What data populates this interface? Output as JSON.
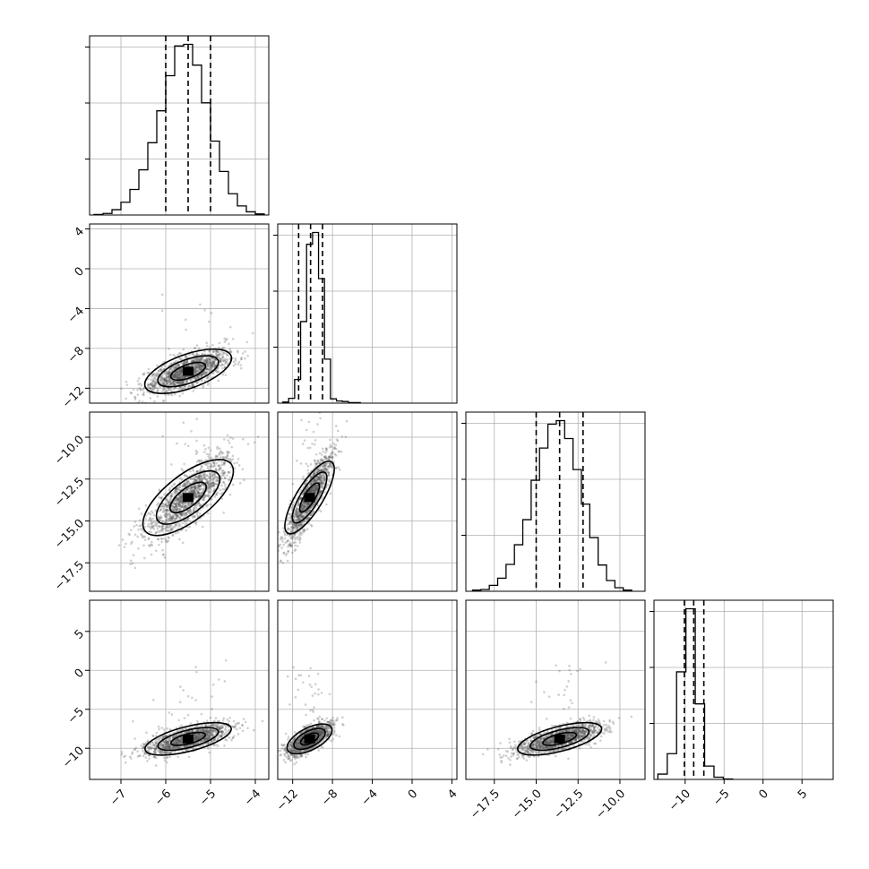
{
  "chart_data": {
    "type": "corner",
    "n_params": 4,
    "colors": {
      "line": "#000000",
      "grid": "#b0b0b0",
      "points": "#555555"
    },
    "params": [
      {
        "range": [
          -7.7,
          -3.7
        ],
        "ticks": [
          {
            "v": -7,
            "label": "−7"
          },
          {
            "v": -6,
            "label": "−6"
          },
          {
            "v": -5,
            "label": "−5"
          },
          {
            "v": -4,
            "label": "−4"
          }
        ],
        "mean": -5.5,
        "sd": 0.48,
        "quantiles": [
          -6.0,
          -5.5,
          -5.0
        ],
        "hist_bins": [
          -7.6,
          -7.4,
          -7.2,
          -7.0,
          -6.8,
          -6.6,
          -6.4,
          -6.2,
          -6.0,
          -5.8,
          -5.6,
          -5.4,
          -5.2,
          -5.0,
          -4.8,
          -4.6,
          -4.4,
          -4.2,
          -4.0,
          -3.8
        ],
        "hist_counts": [
          1,
          3,
          10,
          24,
          48,
          85,
          136,
          196,
          262,
          318,
          321,
          282,
          211,
          139,
          82,
          40,
          17,
          6,
          2
        ]
      },
      {
        "range": [
          -13.5,
          4.5
        ],
        "ticks": [
          {
            "v": -12,
            "label": "−12"
          },
          {
            "v": -8,
            "label": "−8"
          },
          {
            "v": -4,
            "label": "−4"
          },
          {
            "v": 0,
            "label": "0"
          },
          {
            "v": 4,
            "label": "4"
          }
        ],
        "mean": -10.3,
        "sd": 1.1,
        "quantiles": [
          -11.4,
          -10.2,
          -9.0
        ],
        "hist_bins": [
          -13.0,
          -12.4,
          -11.8,
          -11.2,
          -10.6,
          -10.0,
          -9.4,
          -8.8,
          -8.2,
          -7.6,
          -7.0,
          -6.4,
          -5.8,
          -5.2
        ],
        "hist_counts": [
          2,
          9,
          44,
          152,
          296,
          318,
          232,
          82,
          8,
          4,
          3,
          1,
          1
        ]
      },
      {
        "range": [
          -19.2,
          -8.5
        ],
        "ticks": [
          {
            "v": -17.5,
            "label": "−17.5"
          },
          {
            "v": -15.0,
            "label": "−15.0"
          },
          {
            "v": -12.5,
            "label": "−12.5"
          },
          {
            "v": -10.0,
            "label": "−10.0"
          }
        ],
        "mean": -13.6,
        "sd": 1.25,
        "quantiles": [
          -15.0,
          -13.6,
          -12.2
        ],
        "hist_bins": [
          -18.8,
          -18.3,
          -17.8,
          -17.3,
          -16.8,
          -16.3,
          -15.8,
          -15.3,
          -14.8,
          -14.3,
          -13.8,
          -13.3,
          -12.8,
          -12.3,
          -11.8,
          -11.3,
          -10.8,
          -10.3,
          -9.8,
          -9.3
        ],
        "hist_counts": [
          2,
          3,
          10,
          22,
          45,
          78,
          120,
          186,
          240,
          280,
          286,
          256,
          204,
          146,
          90,
          44,
          18,
          6,
          2
        ]
      },
      {
        "range": [
          -14,
          9
        ],
        "ticks": [
          {
            "v": -10,
            "label": "−10"
          },
          {
            "v": -5,
            "label": "−5"
          },
          {
            "v": 0,
            "label": "0"
          },
          {
            "v": 5,
            "label": "5"
          }
        ],
        "mean": -8.8,
        "sd": 1.0,
        "quantiles": [
          -10.1,
          -8.9,
          -7.6
        ],
        "hist_bins": [
          -13.5,
          -12.3,
          -11.1,
          -9.9,
          -8.7,
          -7.5,
          -6.3,
          -5.1,
          -3.9
        ],
        "hist_counts": [
          12,
          58,
          242,
          384,
          170,
          30,
          5,
          1
        ]
      }
    ],
    "pairs": [
      {
        "x": 0,
        "y": 1,
        "corr": 0.7
      },
      {
        "x": 0,
        "y": 2,
        "corr": 0.8
      },
      {
        "x": 1,
        "y": 2,
        "corr": 0.85
      },
      {
        "x": 0,
        "y": 3,
        "corr": 0.7
      },
      {
        "x": 1,
        "y": 3,
        "corr": 0.72
      },
      {
        "x": 2,
        "y": 3,
        "corr": 0.7
      }
    ]
  }
}
